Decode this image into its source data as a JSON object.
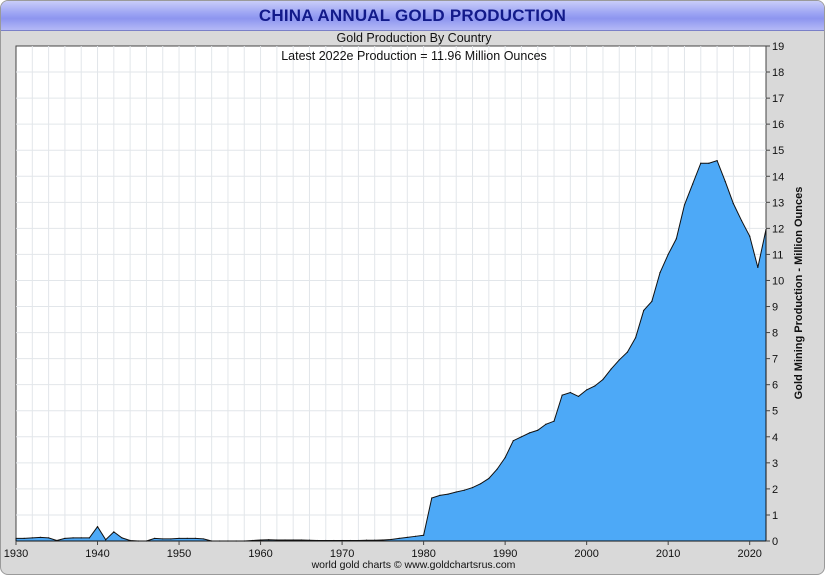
{
  "page_title": "CHINA ANNUAL GOLD PRODUCTION",
  "footer_text": "world gold charts © www.goldchartsrus.com",
  "chart_data": {
    "type": "area",
    "title": "Gold Production By Country",
    "subtitle": "Latest 2022e Production = 11.96 Million Ounces",
    "xlabel": "",
    "ylabel": "Gold Mining Production - Million Ounces",
    "xlim": [
      1930,
      2022
    ],
    "ylim": [
      0,
      19
    ],
    "x_ticks": [
      1930,
      1940,
      1950,
      1960,
      1970,
      1980,
      1990,
      2000,
      2010,
      2020
    ],
    "y_ticks": [
      0,
      1,
      2,
      3,
      4,
      5,
      6,
      7,
      8,
      9,
      10,
      11,
      12,
      13,
      14,
      15,
      16,
      17,
      18,
      19
    ],
    "grid": true,
    "fill_color": "#4da9f7",
    "line_color": "#111111",
    "series": [
      {
        "name": "China",
        "x": [
          1930,
          1931,
          1932,
          1933,
          1934,
          1935,
          1936,
          1937,
          1938,
          1939,
          1940,
          1941,
          1942,
          1943,
          1944,
          1945,
          1946,
          1947,
          1948,
          1949,
          1950,
          1951,
          1952,
          1953,
          1954,
          1955,
          1956,
          1957,
          1958,
          1959,
          1960,
          1961,
          1962,
          1963,
          1964,
          1965,
          1966,
          1967,
          1968,
          1969,
          1970,
          1971,
          1972,
          1973,
          1974,
          1975,
          1976,
          1977,
          1978,
          1979,
          1980,
          1981,
          1982,
          1983,
          1984,
          1985,
          1986,
          1987,
          1988,
          1989,
          1990,
          1991,
          1992,
          1993,
          1994,
          1995,
          1996,
          1997,
          1998,
          1999,
          2000,
          2001,
          2002,
          2003,
          2004,
          2005,
          2006,
          2007,
          2008,
          2009,
          2010,
          2011,
          2012,
          2013,
          2014,
          2015,
          2016,
          2017,
          2018,
          2019,
          2020,
          2021,
          2022
        ],
        "values": [
          0.1,
          0.1,
          0.12,
          0.14,
          0.12,
          0.02,
          0.1,
          0.12,
          0.12,
          0.12,
          0.55,
          0.05,
          0.35,
          0.12,
          0.02,
          0.0,
          0.0,
          0.1,
          0.08,
          0.08,
          0.1,
          0.1,
          0.1,
          0.08,
          0.0,
          0.0,
          0.0,
          0.0,
          0.0,
          0.02,
          0.04,
          0.05,
          0.04,
          0.04,
          0.04,
          0.04,
          0.03,
          0.02,
          0.02,
          0.02,
          0.02,
          0.02,
          0.02,
          0.03,
          0.03,
          0.04,
          0.06,
          0.1,
          0.14,
          0.18,
          0.22,
          1.65,
          1.75,
          1.8,
          1.88,
          1.95,
          2.05,
          2.2,
          2.4,
          2.75,
          3.2,
          3.85,
          4.0,
          4.15,
          4.25,
          4.48,
          4.6,
          5.6,
          5.7,
          5.55,
          5.8,
          5.95,
          6.2,
          6.6,
          6.95,
          7.25,
          7.8,
          8.85,
          9.2,
          10.3,
          11.0,
          11.6,
          12.9,
          13.7,
          14.5,
          14.5,
          14.6,
          13.8,
          12.95,
          12.3,
          11.7,
          10.5,
          11.96
        ]
      }
    ]
  }
}
